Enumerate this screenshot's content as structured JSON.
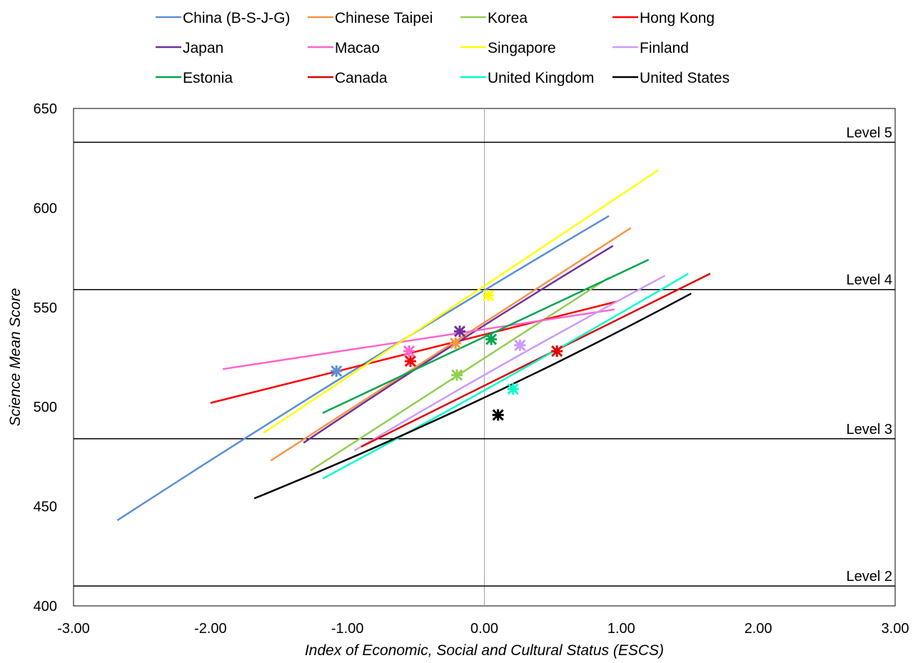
{
  "chart_data": {
    "type": "line",
    "title": "",
    "xlabel": "Index of Economic, Social and Cultural Status (ESCS)",
    "ylabel": "Science Mean Score",
    "xlim": [
      -3,
      3
    ],
    "ylim": [
      400,
      650
    ],
    "x_ticks": [
      "-3.00",
      "-2.00",
      "-1.00",
      "0.00",
      "1.00",
      "2.00",
      "3.00"
    ],
    "y_ticks": [
      "400",
      "450",
      "500",
      "550",
      "600",
      "650"
    ],
    "grid": false,
    "legend_position": "top",
    "reference_lines": [
      {
        "label": "Level 2",
        "y": 410
      },
      {
        "label": "Level 3",
        "y": 484
      },
      {
        "label": "Level 4",
        "y": 559
      },
      {
        "label": "Level 5",
        "y": 633
      }
    ],
    "series": [
      {
        "name": "China (B-S-J-G)",
        "color": "#5b8fd6",
        "x": [
          -2.68,
          0.91
        ],
        "y": [
          443,
          596
        ],
        "curvature": -3,
        "mean": [
          -1.08,
          518
        ]
      },
      {
        "name": "Chinese Taipei",
        "color": "#f79646",
        "x": [
          -1.56,
          1.07
        ],
        "y": [
          473,
          590
        ],
        "curvature": 0,
        "mean": [
          -0.21,
          532
        ]
      },
      {
        "name": "Korea",
        "color": "#92d050",
        "x": [
          -1.27,
          0.91
        ],
        "y": [
          468,
          565
        ],
        "curvature": 0,
        "mean": [
          -0.2,
          516
        ]
      },
      {
        "name": "Hong Kong",
        "color": "#ff0000",
        "x": [
          -2.0,
          0.97
        ],
        "y": [
          502,
          553
        ],
        "curvature": 0,
        "mean": [
          -0.54,
          523
        ]
      },
      {
        "name": "Japan",
        "color": "#7030a0",
        "x": [
          -1.32,
          0.94
        ],
        "y": [
          482,
          581
        ],
        "curvature": -2,
        "mean": [
          -0.18,
          538
        ]
      },
      {
        "name": "Macao",
        "color": "#ff66cc",
        "x": [
          -1.91,
          0.95
        ],
        "y": [
          519,
          549
        ],
        "curvature": 0,
        "mean": [
          -0.55,
          528
        ]
      },
      {
        "name": "Singapore",
        "color": "#ffff00",
        "x": [
          -1.61,
          1.27
        ],
        "y": [
          487,
          619
        ],
        "curvature": 0,
        "mean": [
          0.03,
          556
        ]
      },
      {
        "name": "Finland",
        "color": "#cc99ff",
        "x": [
          -0.95,
          1.32
        ],
        "y": [
          478,
          566
        ],
        "curvature": -2,
        "mean": [
          0.26,
          531
        ]
      },
      {
        "name": "Estonia",
        "color": "#00a651",
        "x": [
          -1.18,
          1.2
        ],
        "y": [
          497,
          574
        ],
        "curvature": 0,
        "mean": [
          0.05,
          534
        ]
      },
      {
        "name": "Canada",
        "color": "#e00000",
        "x": [
          -0.9,
          1.65
        ],
        "y": [
          480,
          567
        ],
        "curvature": 0,
        "mean": [
          0.53,
          528
        ]
      },
      {
        "name": "United Kingdom",
        "color": "#00ffcc",
        "x": [
          -1.18,
          1.49
        ],
        "y": [
          464,
          567
        ],
        "curvature": 2,
        "mean": [
          0.21,
          509
        ]
      },
      {
        "name": "United States",
        "color": "#000000",
        "x": [
          -1.68,
          1.51
        ],
        "y": [
          454,
          557
        ],
        "curvature": 6,
        "mean": [
          0.1,
          496
        ]
      }
    ]
  }
}
